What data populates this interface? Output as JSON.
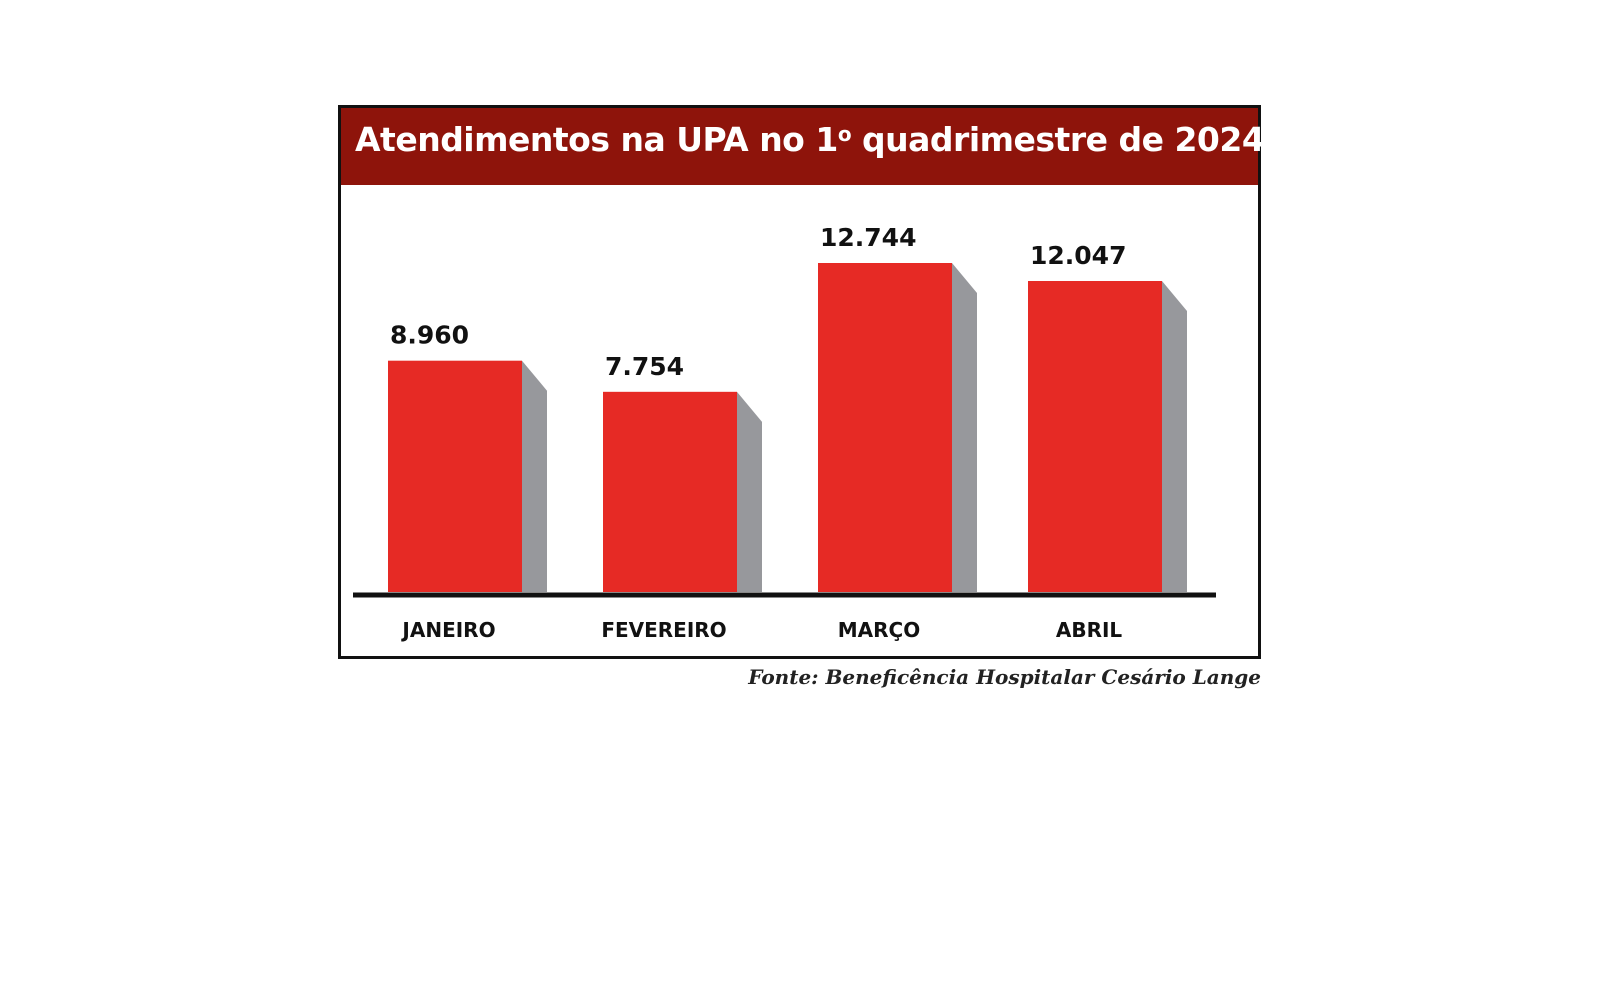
{
  "title_main": "Atendimentos na UPA no 1",
  "title_ordinal": "o",
  "title_rest": " quadrimestre de 2024",
  "source": "Fonte: Beneficência Hospitalar Cesário Lange",
  "colors": {
    "title_bg": "#8e140b",
    "bar_front": "#e62a25",
    "bar_side": "#97989c",
    "axis": "#111111"
  },
  "chart_data": {
    "type": "bar",
    "title": "Atendimentos na UPA no 1º quadrimestre de 2024",
    "categories": [
      "JANEIRO",
      "FEVEREIRO",
      "MARÇO",
      "ABRIL"
    ],
    "values": [
      8960,
      7754,
      12744,
      12047
    ],
    "value_labels": [
      "8.960",
      "7.754",
      "12.744",
      "12.047"
    ],
    "ylim": [
      0,
      12744
    ],
    "grid": false,
    "legend": "none"
  }
}
